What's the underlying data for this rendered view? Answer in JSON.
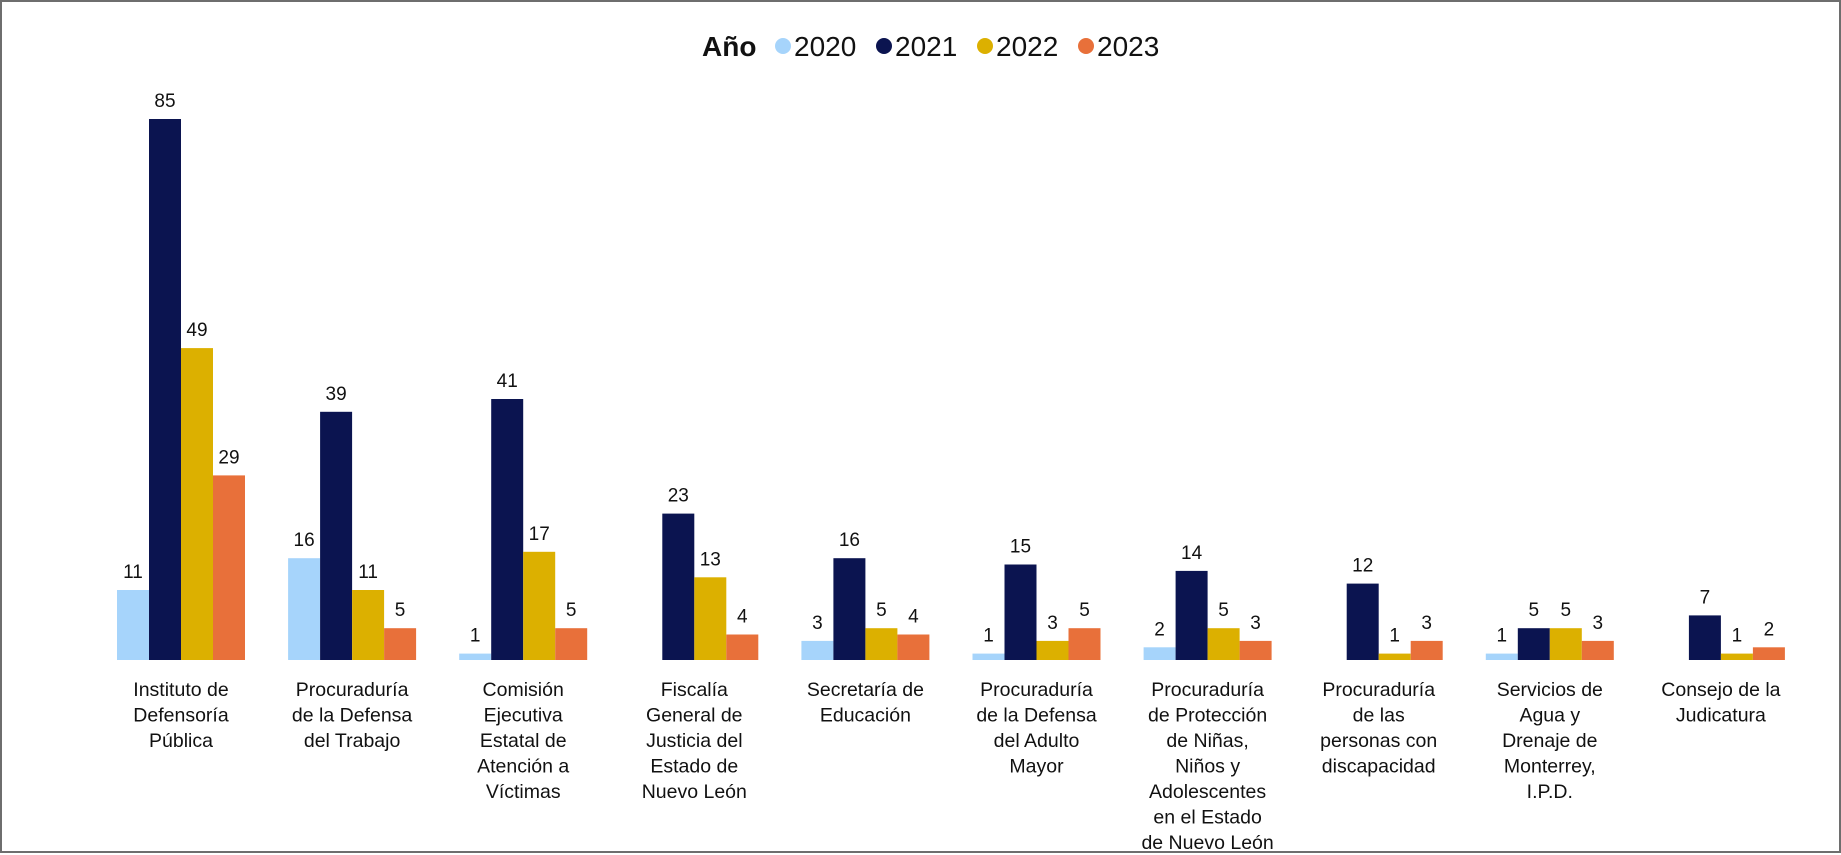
{
  "chart_data": {
    "type": "bar",
    "title": "",
    "xlabel": "",
    "ylabel": "",
    "ylim": [
      0,
      90
    ],
    "grid": false,
    "legend": {
      "title": "Año",
      "placement": "top-center"
    },
    "categories": [
      [
        "Instituto de",
        "Defensoría",
        "Pública"
      ],
      [
        "Procuraduría",
        "de la Defensa",
        "del Trabajo"
      ],
      [
        "Comisión",
        "Ejecutiva",
        "Estatal de",
        "Atención a",
        "Víctimas"
      ],
      [
        "Fiscalía",
        "General de",
        "Justicia del",
        "Estado de",
        "Nuevo León"
      ],
      [
        "Secretaría de",
        "Educación"
      ],
      [
        "Procuraduría",
        "de la Defensa",
        "del Adulto",
        "Mayor"
      ],
      [
        "Procuraduría",
        "de Protección",
        "de Niñas,",
        "Niños y",
        "Adolescentes",
        "en el Estado",
        "de Nuevo León"
      ],
      [
        "Procuraduría",
        "de las",
        "personas con",
        "discapacidad"
      ],
      [
        "Servicios de",
        "Agua y",
        "Drenaje de",
        "Monterrey,",
        "I.P.D."
      ],
      [
        "Consejo de la",
        "Judicatura"
      ]
    ],
    "series": [
      {
        "name": "2020",
        "color": "#a6d4fb",
        "values": [
          11,
          16,
          1,
          null,
          3,
          1,
          2,
          null,
          1,
          null
        ]
      },
      {
        "name": "2021",
        "color": "#0b1450",
        "values": [
          85,
          39,
          41,
          23,
          16,
          15,
          14,
          12,
          5,
          7
        ]
      },
      {
        "name": "2022",
        "color": "#dcb000",
        "values": [
          49,
          11,
          17,
          13,
          5,
          3,
          5,
          1,
          5,
          1
        ]
      },
      {
        "name": "2023",
        "color": "#e8703a",
        "values": [
          29,
          5,
          5,
          4,
          4,
          5,
          3,
          3,
          3,
          2
        ]
      }
    ]
  }
}
